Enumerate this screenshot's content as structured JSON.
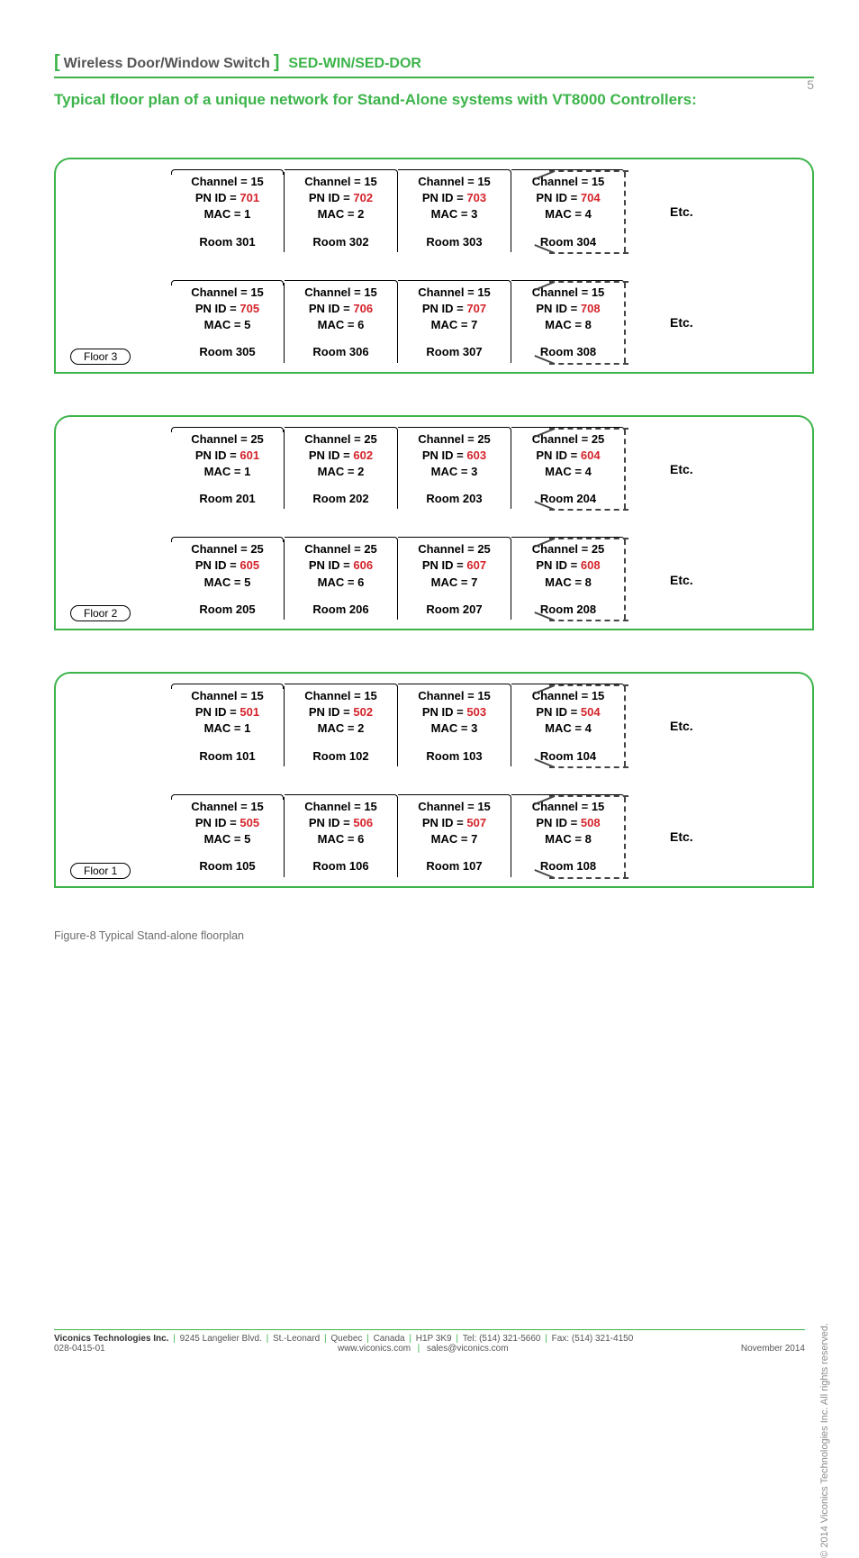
{
  "page_number": "5",
  "header": {
    "title_prefix": "Wireless Door/Window Switch",
    "code": "SED-WIN/SED-DOR"
  },
  "section_heading": "Typical floor plan of a unique network for Stand-Alone systems with VT8000 Controllers:",
  "floors": [
    {
      "tag": "Floor 3",
      "rows": [
        {
          "etc": "Etc.",
          "rooms": [
            {
              "channel": "Channel = 15",
              "pn_label": "PN ID = ",
              "pn_num": "701",
              "mac": "MAC = 1",
              "room": "Room 301"
            },
            {
              "channel": "Channel = 15",
              "pn_label": "PN ID = ",
              "pn_num": "702",
              "mac": "MAC = 2",
              "room": "Room 302"
            },
            {
              "channel": "Channel = 15",
              "pn_label": "PN ID = ",
              "pn_num": "703",
              "mac": "MAC = 3",
              "room": "Room 303"
            },
            {
              "channel": "Channel = 15",
              "pn_label": "PN ID = ",
              "pn_num": "704",
              "mac": "MAC = 4",
              "room": "Room 304"
            }
          ]
        },
        {
          "etc": "Etc.",
          "rooms": [
            {
              "channel": "Channel = 15",
              "pn_label": "PN ID = ",
              "pn_num": "705",
              "mac": "MAC = 5",
              "room": "Room 305"
            },
            {
              "channel": "Channel = 15",
              "pn_label": "PN ID = ",
              "pn_num": "706",
              "mac": "MAC = 6",
              "room": "Room 306"
            },
            {
              "channel": "Channel = 15",
              "pn_label": "PN ID = ",
              "pn_num": "707",
              "mac": "MAC = 7",
              "room": "Room 307"
            },
            {
              "channel": "Channel = 15",
              "pn_label": "PN ID = ",
              "pn_num": "708",
              "mac": "MAC = 8",
              "room": "Room 308"
            }
          ]
        }
      ]
    },
    {
      "tag": "Floor 2",
      "rows": [
        {
          "etc": "Etc.",
          "rooms": [
            {
              "channel": "Channel = 25",
              "pn_label": "PN ID = ",
              "pn_num": "601",
              "mac": "MAC = 1",
              "room": "Room 201"
            },
            {
              "channel": "Channel = 25",
              "pn_label": "PN ID = ",
              "pn_num": "602",
              "mac": "MAC = 2",
              "room": "Room 202"
            },
            {
              "channel": "Channel = 25",
              "pn_label": "PN ID = ",
              "pn_num": "603",
              "mac": "MAC = 3",
              "room": "Room 203"
            },
            {
              "channel": "Channel = 25",
              "pn_label": "PN ID = ",
              "pn_num": "604",
              "mac": "MAC = 4",
              "room": "Room 204"
            }
          ]
        },
        {
          "etc": "Etc.",
          "rooms": [
            {
              "channel": "Channel = 25",
              "pn_label": "PN ID = ",
              "pn_num": "605",
              "mac": "MAC = 5",
              "room": "Room 205"
            },
            {
              "channel": "Channel = 25",
              "pn_label": "PN ID = ",
              "pn_num": "606",
              "mac": "MAC = 6",
              "room": "Room 206"
            },
            {
              "channel": "Channel = 25",
              "pn_label": "PN ID = ",
              "pn_num": "607",
              "mac": "MAC = 7",
              "room": "Room 207"
            },
            {
              "channel": "Channel = 25",
              "pn_label": "PN ID = ",
              "pn_num": "608",
              "mac": "MAC = 8",
              "room": "Room 208"
            }
          ]
        }
      ]
    },
    {
      "tag": "Floor 1",
      "rows": [
        {
          "etc": "Etc.",
          "rooms": [
            {
              "channel": "Channel = 15",
              "pn_label": "PN ID = ",
              "pn_num": "501",
              "mac": "MAC = 1",
              "room": "Room 101"
            },
            {
              "channel": "Channel = 15",
              "pn_label": "PN ID = ",
              "pn_num": "502",
              "mac": "MAC = 2",
              "room": "Room 102"
            },
            {
              "channel": "Channel = 15",
              "pn_label": "PN ID = ",
              "pn_num": "503",
              "mac": "MAC = 3",
              "room": "Room 103"
            },
            {
              "channel": "Channel = 15",
              "pn_label": "PN ID = ",
              "pn_num": "504",
              "mac": "MAC = 4",
              "room": "Room 104"
            }
          ]
        },
        {
          "etc": "Etc.",
          "rooms": [
            {
              "channel": "Channel = 15",
              "pn_label": "PN ID = ",
              "pn_num": "505",
              "mac": "MAC = 5",
              "room": "Room 105"
            },
            {
              "channel": "Channel = 15",
              "pn_label": "PN ID = ",
              "pn_num": "506",
              "mac": "MAC = 6",
              "room": "Room 106"
            },
            {
              "channel": "Channel = 15",
              "pn_label": "PN ID = ",
              "pn_num": "507",
              "mac": "MAC = 7",
              "room": "Room 107"
            },
            {
              "channel": "Channel = 15",
              "pn_label": "PN ID = ",
              "pn_num": "508",
              "mac": "MAC = 8",
              "room": "Room 108"
            }
          ]
        }
      ]
    }
  ],
  "caption": "Figure-8  Typical Stand-alone floorplan",
  "copyright": "© 2014 Viconics Technologies Inc. All rights reserved.",
  "footer": {
    "company": "Viconics Technologies Inc.",
    "addr": "9245 Langelier Blvd.",
    "city": "St.-Leonard",
    "prov": "Quebec",
    "country": "Canada",
    "postal": "H1P 3K9",
    "tel": "Tel: (514) 321-5660",
    "fax": "Fax: (514) 321-4150",
    "doc": "028-0415-01",
    "web": "www.viconics.com",
    "email": "sales@viconics.com",
    "date": "November 2014"
  }
}
